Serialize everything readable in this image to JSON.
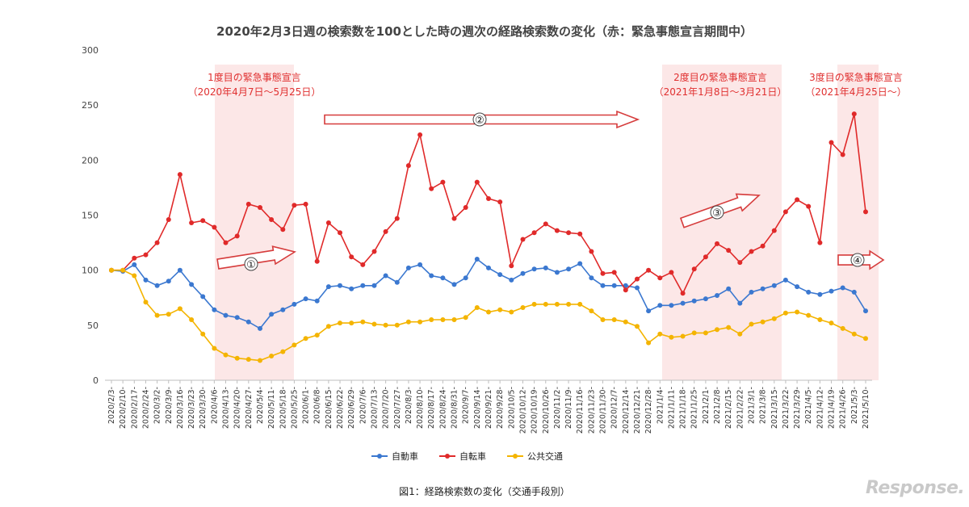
{
  "title": "2020年2月3日週の検索数を100とした時の週次の経路検索数の変化（赤：緊急事態宣言期間中）",
  "caption": "図1：経路検索数の変化（交通手段別）",
  "watermark": "Response.",
  "chart_data": {
    "type": "line",
    "title": "2020年2月3日週の検索数を100とした時の週次の経路検索数の変化（赤：緊急事態宣言期間中）",
    "ylim": [
      0,
      300
    ],
    "yticks": [
      0,
      50,
      100,
      150,
      200,
      250,
      300
    ],
    "grid": false,
    "legend_position": "bottom",
    "x": [
      "2020/2/3-",
      "2020/2/10-",
      "2020/2/17-",
      "2020/2/24-",
      "2020/3/2-",
      "2020/3/9-",
      "2020/3/16-",
      "2020/3/23-",
      "2020/3/30-",
      "2020/4/6-",
      "2020/4/13-",
      "2020/4/20-",
      "2020/4/27-",
      "2020/5/4-",
      "2020/5/11-",
      "2020/5/18-",
      "2020/5/25-",
      "2020/6/1-",
      "2020/6/8-",
      "2020/6/15-",
      "2020/6/22-",
      "2020/6/29-",
      "2020/7/6-",
      "2020/7/13-",
      "2020/7/20-",
      "2020/7/27-",
      "2020/8/3-",
      "2020/8/10-",
      "2020/8/17-",
      "2020/8/24-",
      "2020/8/31-",
      "2020/9/7-",
      "2020/9/14-",
      "2020/9/21-",
      "2020/9/28-",
      "2020/10/5-",
      "2020/10/12-",
      "2020/10/19-",
      "2020/10/26-",
      "2020/11/2-",
      "2020/11/9-",
      "2020/11/16-",
      "2020/11/23-",
      "2020/11/30-",
      "2020/12/7-",
      "2020/12/14-",
      "2020/12/21-",
      "2020/12/28-",
      "2021/1/4-",
      "2021/1/11-",
      "2021/1/18-",
      "2021/1/25-",
      "2021/2/1-",
      "2021/2/8-",
      "2021/2/15-",
      "2021/2/22-",
      "2021/3/1-",
      "2021/3/8-",
      "2021/3/15-",
      "2021/3/22-",
      "2021/3/29-",
      "2021/4/5-",
      "2021/4/12-",
      "2021/4/19-",
      "2021/4/26-",
      "2021/5/3-",
      "2021/5/10-"
    ],
    "series": [
      {
        "name": "自動車",
        "color": "#3b78d0",
        "values": [
          100,
          99,
          105,
          91,
          86,
          90,
          100,
          87,
          76,
          64,
          59,
          57,
          53,
          47,
          60,
          64,
          69,
          74,
          72,
          85,
          86,
          83,
          86,
          86,
          95,
          89,
          102,
          105,
          95,
          93,
          87,
          93,
          110,
          102,
          96,
          91,
          97,
          101,
          102,
          98,
          101,
          106,
          93,
          86,
          86,
          86,
          84,
          63,
          68,
          68,
          70,
          72,
          74,
          77,
          83,
          70,
          80,
          83,
          86,
          91,
          85,
          80,
          78,
          81,
          84,
          80,
          63
        ]
      },
      {
        "name": "自転車",
        "color": "#e02a2a",
        "values": [
          100,
          100,
          111,
          114,
          125,
          146,
          187,
          143,
          145,
          139,
          125,
          131,
          160,
          157,
          146,
          137,
          159,
          160,
          108,
          143,
          134,
          112,
          105,
          117,
          135,
          147,
          195,
          223,
          174,
          180,
          147,
          157,
          180,
          165,
          162,
          104,
          128,
          134,
          142,
          136,
          134,
          133,
          117,
          97,
          98,
          82,
          92,
          100,
          93,
          98,
          79,
          101,
          112,
          124,
          118,
          107,
          117,
          122,
          136,
          153,
          164,
          158,
          125,
          216,
          205,
          242,
          153
        ]
      },
      {
        "name": "公共交通",
        "color": "#f4b400",
        "values": [
          100,
          100,
          95,
          71,
          59,
          60,
          65,
          55,
          42,
          29,
          23,
          20,
          19,
          18,
          22,
          26,
          32,
          38,
          41,
          49,
          52,
          52,
          53,
          51,
          50,
          50,
          53,
          53,
          55,
          55,
          55,
          57,
          66,
          62,
          64,
          62,
          66,
          69,
          69,
          69,
          69,
          69,
          63,
          55,
          55,
          53,
          49,
          34,
          42,
          39,
          40,
          43,
          43,
          46,
          48,
          42,
          51,
          53,
          56,
          61,
          62,
          59,
          55,
          52,
          47,
          42,
          38
        ]
      }
    ],
    "emergency_periods": [
      {
        "start_index": 9,
        "end_index": 16,
        "label": "1度目の緊急事態宣言",
        "dates": "（2020年4月7日～5月25日）"
      },
      {
        "start_index": 48,
        "end_index": 58,
        "label": "2度目の緊急事態宣言",
        "dates": "（2021年1月8日～3月21日）"
      },
      {
        "start_index": 63,
        "end_index": 66,
        "label": "3度目の緊急事態宣言",
        "dates": "（2021年4月25日～）"
      }
    ],
    "phase_arrows": [
      {
        "label": "①"
      },
      {
        "label": "②"
      },
      {
        "label": "③"
      },
      {
        "label": "④"
      }
    ]
  }
}
